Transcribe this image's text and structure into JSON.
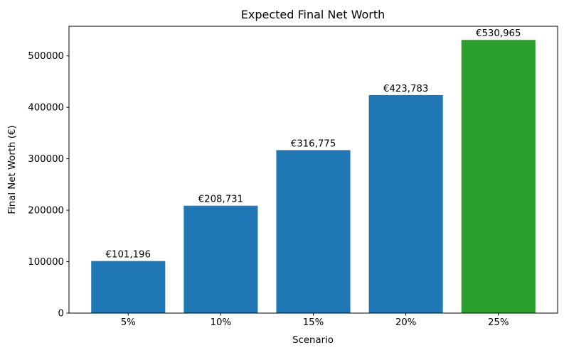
{
  "figure": {
    "title": "Expected Final Net Worth"
  },
  "chart_data": {
    "type": "bar",
    "title": "Expected Final Net Worth",
    "xlabel": "Scenario",
    "ylabel": "Final Net Worth (€)",
    "categories": [
      "5%",
      "10%",
      "15%",
      "20%",
      "25%"
    ],
    "values": [
      101196,
      208731,
      316775,
      423783,
      530965
    ],
    "bar_labels": [
      "€101,196",
      "€208,731",
      "€316,775",
      "€423,783",
      "€530,965"
    ],
    "bar_colors": [
      "#1f77b4",
      "#1f77b4",
      "#1f77b4",
      "#1f77b4",
      "#2ca02c"
    ],
    "ylim": [
      0,
      557513
    ],
    "yticks": [
      0,
      100000,
      200000,
      300000,
      400000,
      500000
    ],
    "ytick_labels": [
      "0",
      "100000",
      "200000",
      "300000",
      "400000",
      "500000"
    ],
    "grid": false,
    "legend": null,
    "background_color": "#ffffff",
    "spine_color": "#000000",
    "text_color": "#000000"
  }
}
